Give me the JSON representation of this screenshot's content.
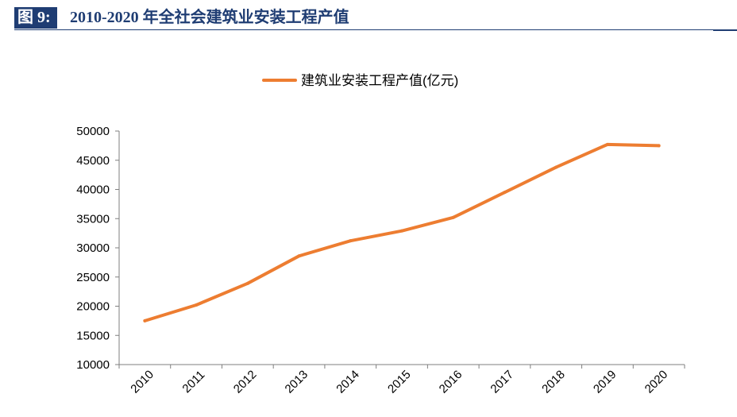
{
  "header": {
    "figure_label": "图 9:",
    "title": "2010-2020 年全社会建筑业安装工程产值"
  },
  "colors": {
    "header_bg": "#1f3d73",
    "series_line": "#ed7d31",
    "axis": "#7f7f7f"
  },
  "chart_data": {
    "type": "line",
    "title": "",
    "xlabel": "",
    "ylabel": "",
    "legend_position": "top-center",
    "grid": false,
    "categories": [
      "2010",
      "2011",
      "2012",
      "2013",
      "2014",
      "2015",
      "2016",
      "2017",
      "2018",
      "2019",
      "2020"
    ],
    "ylim": [
      10000,
      50000
    ],
    "yticks": [
      "10000",
      "15000",
      "20000",
      "25000",
      "30000",
      "35000",
      "40000",
      "45000",
      "50000"
    ],
    "series": [
      {
        "name": "建筑业安装工程产值(亿元)",
        "color": "#ed7d31",
        "values": [
          17500,
          20200,
          23900,
          28600,
          31200,
          32900,
          35200,
          39500,
          43800,
          47700,
          47500
        ]
      }
    ]
  }
}
